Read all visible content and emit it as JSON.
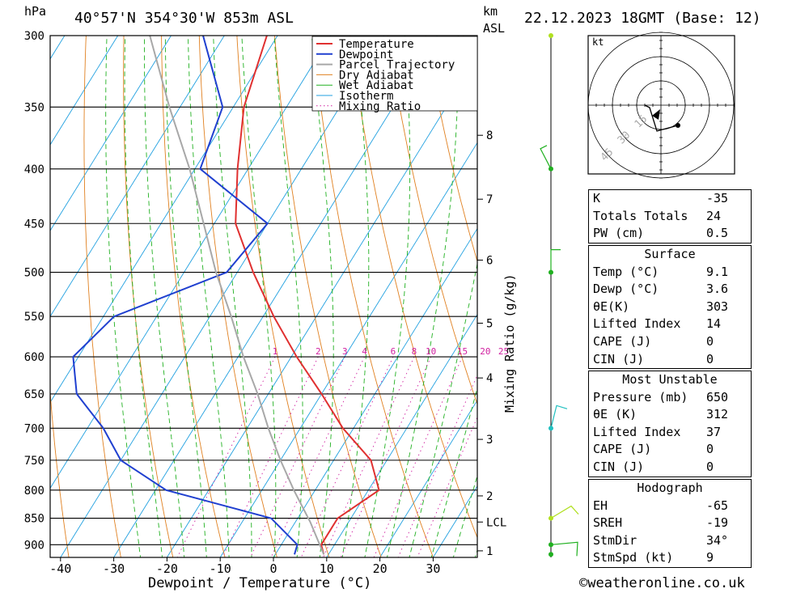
{
  "header": {
    "hpa": "hPa",
    "location": "40°57'N  354°30'W  853m  ASL",
    "km": "km",
    "asl": "ASL",
    "datetime": "22.12.2023  18GMT  (Base: 12)"
  },
  "chart_data": {
    "type": "line",
    "chart_kind": "skew-T log-P",
    "xlabel": "Dewpoint / Temperature (°C)",
    "ylabel": "hPa",
    "right_label": "Mixing Ratio (g/kg)",
    "x_ticks": [
      -40,
      -30,
      -20,
      -10,
      0,
      10,
      20,
      30
    ],
    "p_ticks": [
      300,
      350,
      400,
      450,
      500,
      550,
      600,
      650,
      700,
      750,
      800,
      850,
      900
    ],
    "p_range": [
      300,
      925
    ],
    "km_ticks": [
      {
        "label": "8",
        "p": 372
      },
      {
        "label": "7",
        "p": 427
      },
      {
        "label": "6",
        "p": 487
      },
      {
        "label": "5",
        "p": 558
      },
      {
        "label": "4",
        "p": 628
      },
      {
        "label": "3",
        "p": 717
      },
      {
        "label": "2",
        "p": 810
      },
      {
        "label": "LCL",
        "p": 857
      },
      {
        "label": "1",
        "p": 912
      }
    ],
    "mixing_ratio_labels": [
      "1",
      "2",
      "3",
      "4",
      "6",
      "8",
      "10",
      "15",
      "20",
      "25"
    ],
    "mixing_ratio_values": [
      1,
      2,
      3,
      4,
      6,
      8,
      10,
      15,
      20,
      25
    ],
    "legend": [
      "Temperature",
      "Dewpoint",
      "Parcel Trajectory",
      "Dry Adiabat",
      "Wet Adiabat",
      "Isotherm",
      "Mixing Ratio"
    ],
    "series": [
      {
        "name": "Temperature",
        "color": "#e03030",
        "points": [
          [
            919,
            9.1
          ],
          [
            900,
            7.5
          ],
          [
            850,
            7.5
          ],
          [
            800,
            12
          ],
          [
            750,
            7
          ],
          [
            700,
            -2
          ],
          [
            650,
            -10
          ],
          [
            600,
            -19
          ],
          [
            550,
            -28
          ],
          [
            500,
            -37
          ],
          [
            450,
            -46
          ],
          [
            400,
            -52
          ],
          [
            350,
            -58
          ],
          [
            300,
            -62
          ]
        ]
      },
      {
        "name": "Dewpoint",
        "color": "#2040d0",
        "points": [
          [
            919,
            3.6
          ],
          [
            900,
            3
          ],
          [
            850,
            -5
          ],
          [
            800,
            -28
          ],
          [
            750,
            -40
          ],
          [
            700,
            -47
          ],
          [
            650,
            -56
          ],
          [
            600,
            -61
          ],
          [
            550,
            -58
          ],
          [
            500,
            -42
          ],
          [
            450,
            -40
          ],
          [
            400,
            -59
          ],
          [
            350,
            -62
          ],
          [
            300,
            -74
          ]
        ]
      },
      {
        "name": "Parcel Trajectory",
        "color": "#a8a8a8",
        "points": [
          [
            919,
            9.1
          ],
          [
            857,
            2.8
          ],
          [
            800,
            -4
          ],
          [
            750,
            -10
          ],
          [
            700,
            -16
          ],
          [
            650,
            -22
          ],
          [
            600,
            -29
          ],
          [
            550,
            -36
          ],
          [
            500,
            -44
          ],
          [
            450,
            -52
          ],
          [
            400,
            -61
          ],
          [
            350,
            -72
          ],
          [
            300,
            -84
          ]
        ]
      }
    ]
  },
  "hodograph": {
    "unit": "kt",
    "ring_labels": [
      "15",
      "30",
      "45"
    ]
  },
  "indices": [
    {
      "k": "K",
      "v": "-35"
    },
    {
      "k": "Totals Totals",
      "v": "24"
    },
    {
      "k": "PW (cm)",
      "v": "0.5"
    }
  ],
  "surface": {
    "title": "Surface",
    "rows": [
      {
        "k": "Temp (°C)",
        "v": "9.1"
      },
      {
        "k": "Dewp (°C)",
        "v": "3.6"
      },
      {
        "k": "θE(K)",
        "v": "303"
      },
      {
        "k": "Lifted Index",
        "v": "14"
      },
      {
        "k": "CAPE (J)",
        "v": "0"
      },
      {
        "k": "CIN (J)",
        "v": "0"
      }
    ]
  },
  "most_unstable": {
    "title": "Most Unstable",
    "rows": [
      {
        "k": "Pressure (mb)",
        "v": "650"
      },
      {
        "k": "θE (K)",
        "v": "312"
      },
      {
        "k": "Lifted Index",
        "v": "37"
      },
      {
        "k": "CAPE (J)",
        "v": "0"
      },
      {
        "k": "CIN (J)",
        "v": "0"
      }
    ]
  },
  "hodo_table": {
    "title": "Hodograph",
    "rows": [
      {
        "k": "EH",
        "v": "-65"
      },
      {
        "k": "SREH",
        "v": "-19"
      },
      {
        "k": "StmDir",
        "v": "34°"
      },
      {
        "k": "StmSpd (kt)",
        "v": "9"
      }
    ]
  },
  "footer": "©weatheronline.co.uk",
  "colors": {
    "temperature": "#e03030",
    "dewpoint": "#2040d0",
    "parcel": "#a8a8a8",
    "dry_adiabat": "#e08020",
    "wet_adiabat": "#20b020",
    "isotherm": "#20a0e0",
    "mixing_ratio": "#d020a0"
  }
}
